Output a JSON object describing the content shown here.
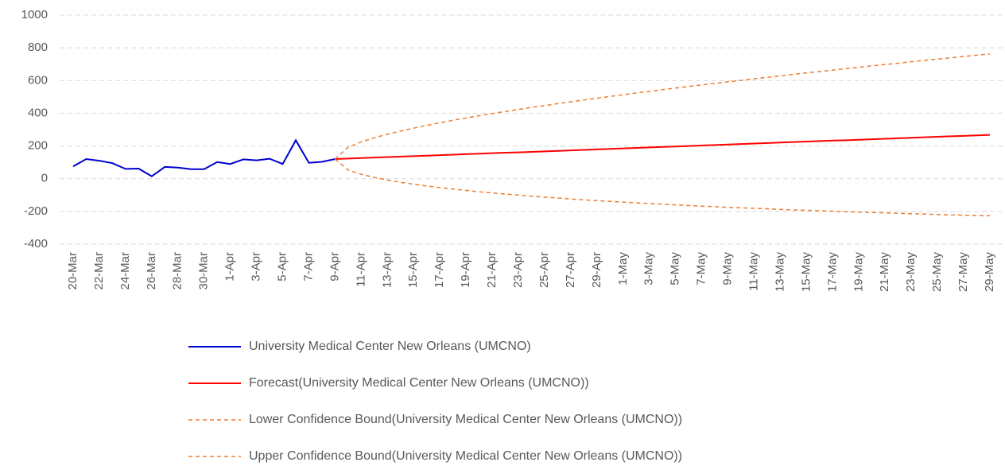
{
  "chart_data": {
    "type": "line",
    "categories": [
      "20-Mar",
      null,
      "22-Mar",
      null,
      "24-Mar",
      null,
      "26-Mar",
      null,
      "28-Mar",
      null,
      "30-Mar",
      null,
      "1-Apr",
      null,
      "3-Apr",
      null,
      "5-Apr",
      null,
      "7-Apr",
      null,
      "9-Apr",
      null,
      "11-Apr",
      null,
      "13-Apr",
      null,
      "15-Apr",
      null,
      "17-Apr",
      null,
      "19-Apr",
      null,
      "21-Apr",
      null,
      "23-Apr",
      null,
      "25-Apr",
      null,
      "27-Apr",
      null,
      "29-Apr",
      null,
      "1-May",
      null,
      "3-May",
      null,
      "5-May",
      null,
      "7-May",
      null,
      "9-May",
      null,
      "11-May",
      null,
      "13-May",
      null,
      "15-May",
      null,
      "17-May",
      null,
      "19-May",
      null,
      "21-May",
      null,
      "23-May",
      null,
      "25-May",
      null,
      "27-May",
      null,
      "29-May"
    ],
    "ylim": [
      -400,
      1000
    ],
    "yticks": [
      -400,
      -200,
      0,
      200,
      400,
      600,
      800,
      1000
    ],
    "grid": true,
    "series": [
      {
        "name": "University Medical Center New Orleans (UMCNO)",
        "color": "#0000cc",
        "dashed": false,
        "values": [
          75,
          120,
          110,
          95,
          60,
          62,
          15,
          72,
          68,
          58,
          58,
          102,
          90,
          118,
          112,
          122,
          90,
          235,
          97,
          103,
          120,
          null,
          null,
          null,
          null,
          null,
          null,
          null,
          null,
          null,
          null,
          null,
          null,
          null,
          null,
          null,
          null,
          null,
          null,
          null,
          null,
          null,
          null,
          null,
          null,
          null,
          null,
          null,
          null,
          null,
          null,
          null,
          null,
          null,
          null,
          null,
          null,
          null,
          null,
          null,
          null,
          null,
          null,
          null,
          null,
          null,
          null,
          null,
          null,
          null,
          null
        ]
      },
      {
        "name": "Forecast(University Medical Center New Orleans (UMCNO))",
        "color": "#ff0000",
        "dashed": false,
        "values": [
          null,
          null,
          null,
          null,
          null,
          null,
          null,
          null,
          null,
          null,
          null,
          null,
          null,
          null,
          null,
          null,
          null,
          null,
          null,
          null,
          120,
          123,
          126,
          129,
          132,
          135,
          138,
          141,
          144,
          147,
          150,
          153,
          156,
          159,
          161,
          164,
          167,
          170,
          173,
          176,
          179,
          182,
          185,
          188,
          191,
          194,
          197,
          200,
          203,
          206,
          209,
          212,
          215,
          218,
          221,
          224,
          227,
          230,
          233,
          235,
          238,
          241,
          244,
          247,
          250,
          253,
          256,
          259,
          262,
          265,
          268
        ]
      },
      {
        "name": "Lower Confidence Bound(University Medical Center New Orleans (UMCNO))",
        "color": "#ed7d31",
        "dashed": true,
        "values": [
          null,
          null,
          null,
          null,
          null,
          null,
          null,
          null,
          null,
          null,
          null,
          null,
          null,
          null,
          null,
          null,
          null,
          null,
          null,
          null,
          120,
          53,
          27,
          8,
          -8,
          -22,
          -34,
          -45,
          -54,
          -63,
          -72,
          -80,
          -87,
          -94,
          -100,
          -107,
          -113,
          -118,
          -124,
          -129,
          -134,
          -139,
          -143,
          -148,
          -152,
          -156,
          -160,
          -164,
          -168,
          -171,
          -175,
          -178,
          -181,
          -184,
          -188,
          -191,
          -193,
          -196,
          -199,
          -202,
          -204,
          -207,
          -209,
          -212,
          -214,
          -216,
          -219,
          -221,
          -223,
          -225,
          -227
        ]
      },
      {
        "name": "Upper Confidence Bound(University Medical Center New Orleans (UMCNO))",
        "color": "#ed7d31",
        "dashed": true,
        "values": [
          null,
          null,
          null,
          null,
          null,
          null,
          null,
          null,
          null,
          null,
          null,
          null,
          null,
          null,
          null,
          null,
          null,
          null,
          null,
          null,
          120,
          193,
          225,
          250,
          272,
          291,
          309,
          326,
          342,
          357,
          371,
          385,
          398,
          411,
          423,
          436,
          447,
          459,
          470,
          481,
          492,
          503,
          513,
          524,
          534,
          544,
          554,
          564,
          573,
          583,
          592,
          601,
          611,
          620,
          629,
          638,
          647,
          655,
          664,
          673,
          681,
          690,
          698,
          706,
          715,
          723,
          731,
          739,
          747,
          755,
          763
        ]
      }
    ]
  }
}
